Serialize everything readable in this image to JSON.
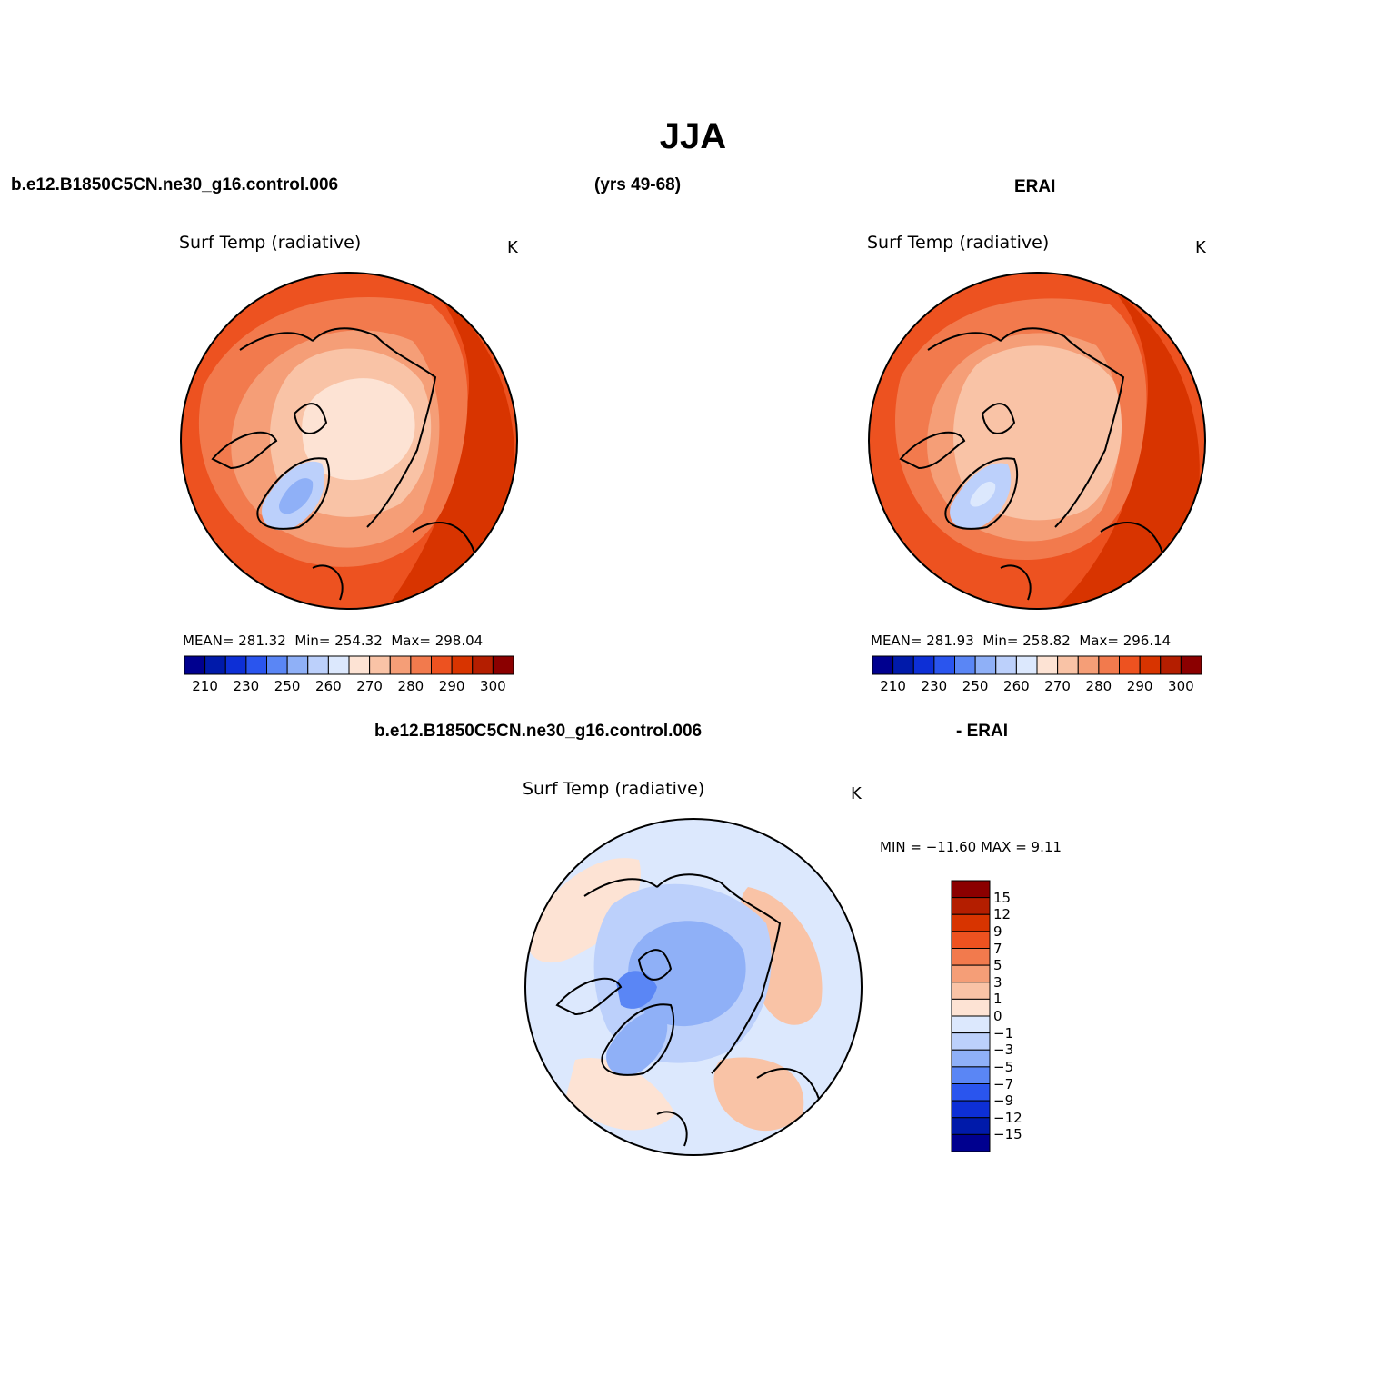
{
  "page": {
    "title": "JJA",
    "top_left_case": "b.e12.B1850C5CN.ne30_g16.control.006",
    "top_years": "(yrs 49-68)",
    "top_right_case": "ERAI",
    "bottom_case": "b.e12.B1850C5CN.ne30_g16.control.006",
    "bottom_minus": "- ERAI"
  },
  "panels": [
    {
      "variable": "Surf Temp (radiative)",
      "units": "K",
      "stats": {
        "mean_label": "MEAN=",
        "mean": "281.32",
        "min_label": "Min=",
        "min": "254.32",
        "max_label": "Max=",
        "max": "298.04"
      }
    },
    {
      "variable": "Surf Temp (radiative)",
      "units": "K",
      "stats": {
        "mean_label": "MEAN=",
        "mean": "281.93",
        "min_label": "Min=",
        "min": "258.82",
        "max_label": "Max=",
        "max": "296.14"
      }
    },
    {
      "variable": "Surf Temp (radiative)",
      "units": "K",
      "range_text": "MIN = −11.60 MAX =    9.11"
    }
  ],
  "abs_colorbar": {
    "colors": [
      "#00008f",
      "#001aaa",
      "#0d2fd6",
      "#2a55ee",
      "#5a86f5",
      "#8fb0f7",
      "#bcd0fb",
      "#dce8fd",
      "#fde3d4",
      "#f9c3a6",
      "#f59e77",
      "#f27a4d",
      "#ed5220",
      "#d83400",
      "#b41e00",
      "#8b0000"
    ],
    "labels": [
      "210",
      "230",
      "250",
      "260",
      "270",
      "280",
      "290",
      "300"
    ]
  },
  "diff_colorbar": {
    "colors": [
      "#8b0000",
      "#b41e00",
      "#d83400",
      "#ed5220",
      "#f27a4d",
      "#f59e77",
      "#f9c3a6",
      "#fde3d4",
      "#dce8fd",
      "#bcd0fb",
      "#8fb0f7",
      "#5a86f5",
      "#2a55ee",
      "#0d2fd6",
      "#001aaa",
      "#00008f"
    ],
    "labels": [
      "15",
      "12",
      "9",
      "7",
      "5",
      "3",
      "1",
      "0",
      "−1",
      "−3",
      "−5",
      "−7",
      "−9",
      "−12",
      "−15"
    ]
  },
  "map_colors": {
    "warm_dark": "#d83400",
    "warm": "#ed5220",
    "warm_mid": "#f27a4d",
    "warm_light": "#f59e77",
    "pale": "#f9c3a6",
    "cream": "#fde3d4",
    "cool_light": "#bcd0fb",
    "cool_mid": "#8fb0f7",
    "cool": "#5a86f5",
    "diff_base": "#dce8fd",
    "coast": "#000000"
  }
}
